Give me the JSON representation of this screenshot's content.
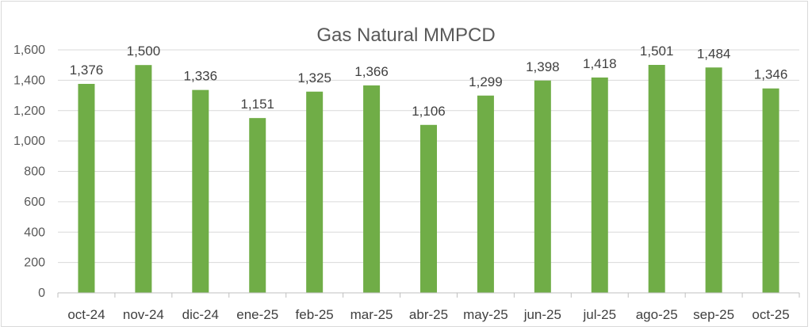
{
  "chart_data": {
    "type": "bar",
    "title": "Gas Natural MMPCD",
    "categories": [
      "oct-24",
      "nov-24",
      "dic-24",
      "ene-25",
      "feb-25",
      "mar-25",
      "abr-25",
      "may-25",
      "jun-25",
      "jul-25",
      "ago-25",
      "sep-25",
      "oct-25"
    ],
    "values": [
      1376,
      1500,
      1336,
      1151,
      1325,
      1366,
      1106,
      1299,
      1398,
      1418,
      1501,
      1484,
      1346
    ],
    "data_labels": [
      "1,376",
      "1,500",
      "1,336",
      "1,151",
      "1,325",
      "1,366",
      "1,106",
      "1,299",
      "1,398",
      "1,418",
      "1,501",
      "1,484",
      "1,346"
    ],
    "y_ticks": [
      0,
      200,
      400,
      600,
      800,
      1000,
      1200,
      1400,
      1600
    ],
    "y_tick_labels": [
      "0",
      "200",
      "400",
      "600",
      "800",
      "1,000",
      "1,200",
      "1,400",
      "1,600"
    ],
    "ylim": [
      0,
      1600
    ],
    "grid": true,
    "legend": "none",
    "xlabel": "",
    "ylabel": "",
    "colors": {
      "bar": "#70ad47",
      "grid": "#d9d9d9",
      "axis": "#bfbfbf"
    }
  }
}
